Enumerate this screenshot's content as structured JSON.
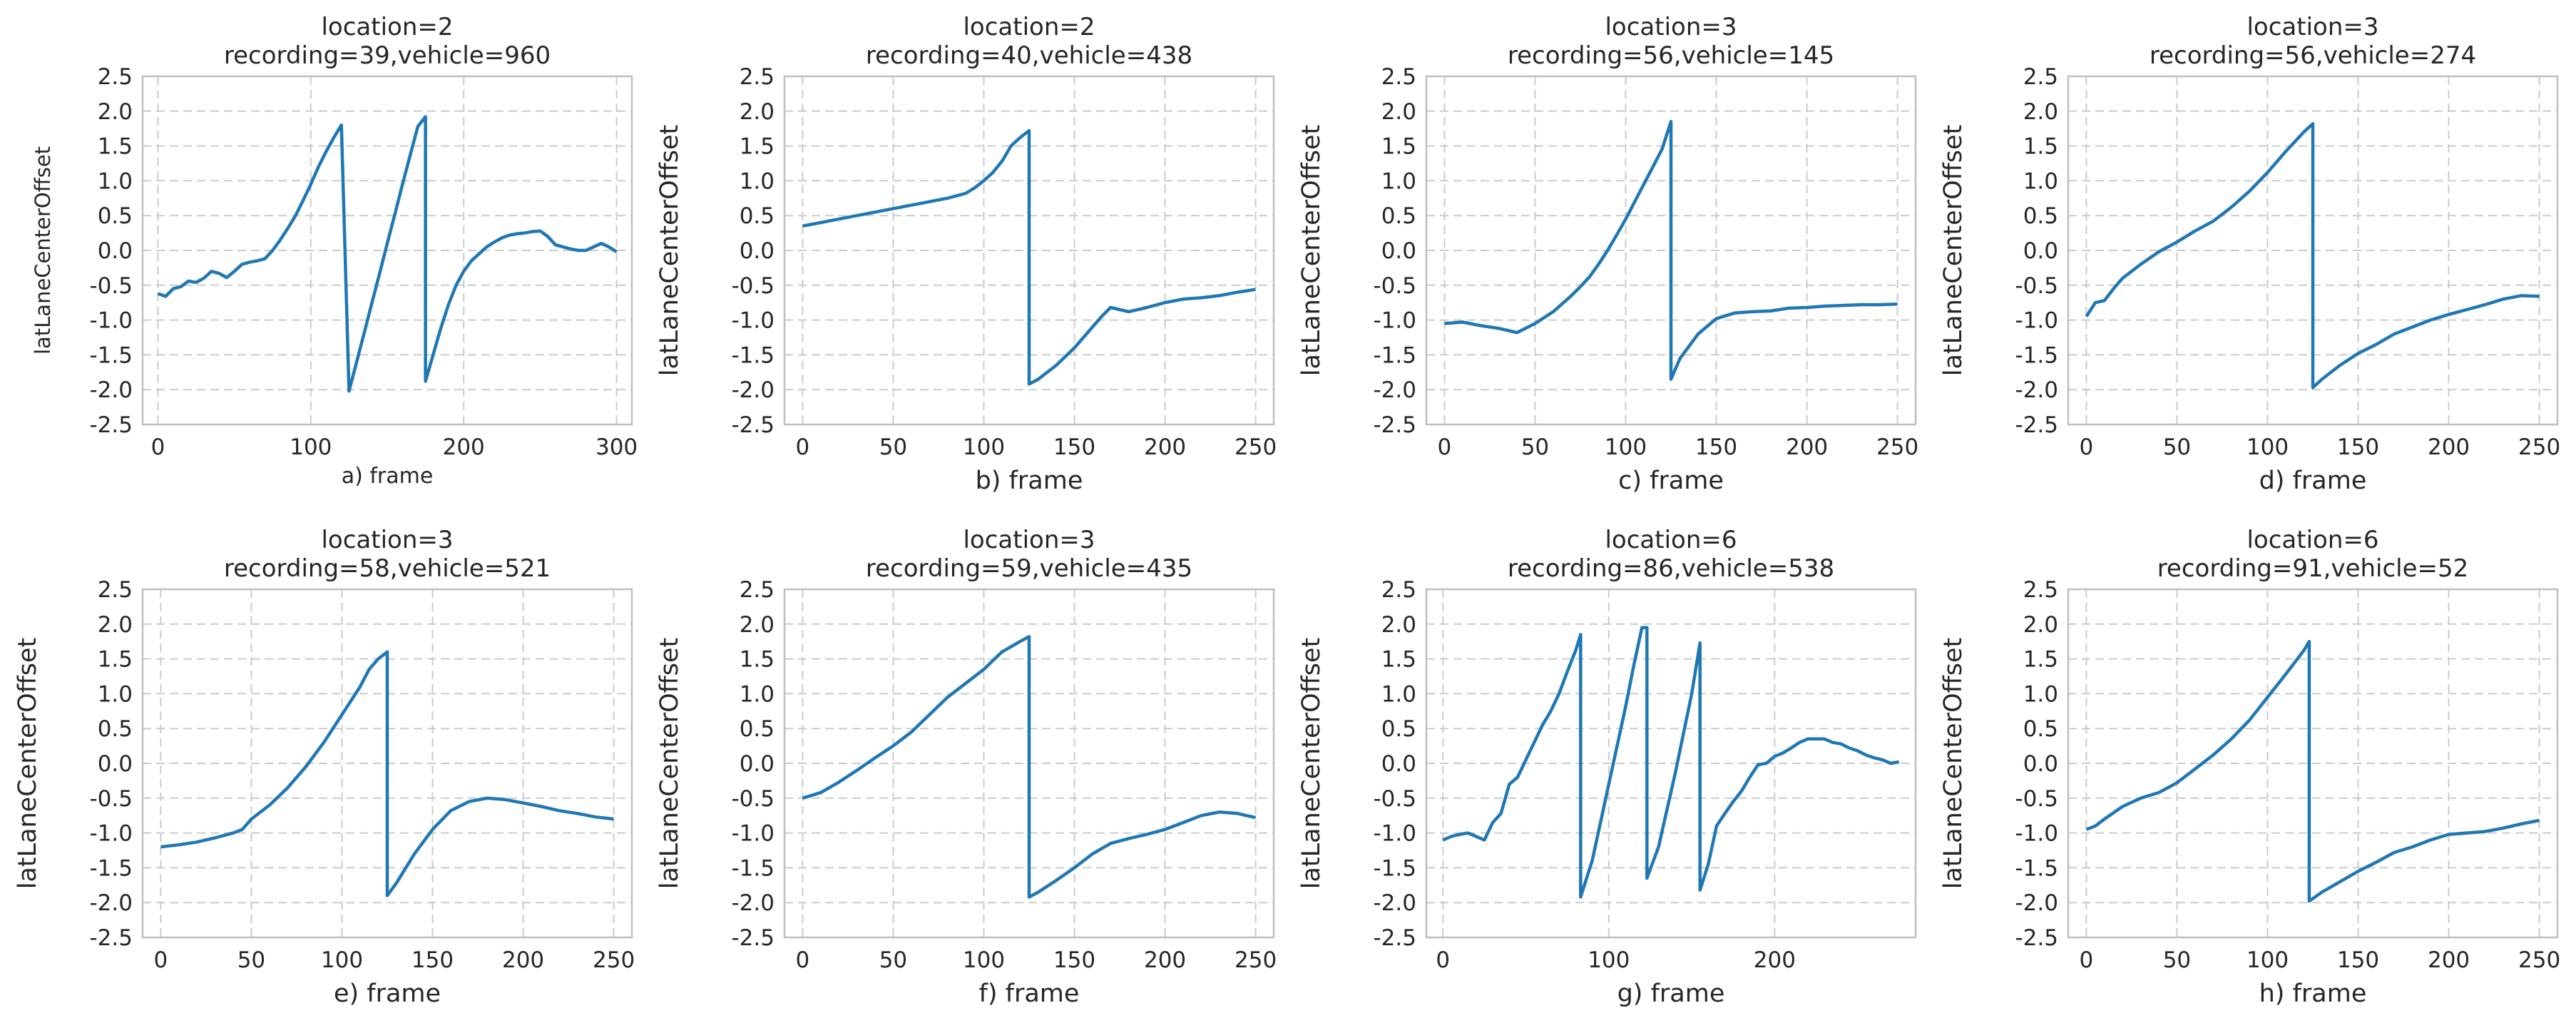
{
  "style": {
    "line_color": "#1f77b4",
    "grid_color": "#cccccc",
    "frame_color": "#bfbfbf",
    "text_color": "#262626"
  },
  "chart_data": [
    {
      "type": "line",
      "title": "location=2",
      "subtitle": "recording=39,vehicle=960",
      "xlabel": "a) frame",
      "ylabel": "latLaneCenterOffset",
      "xlim": [
        -10,
        310
      ],
      "ylim": [
        -2.5,
        2.5
      ],
      "xticks": [
        0,
        100,
        200,
        300
      ],
      "yticks": [
        -2.5,
        -2.0,
        -1.5,
        -1.0,
        -0.5,
        0.0,
        0.5,
        1.0,
        1.5,
        2.0,
        2.5
      ],
      "grid": true,
      "series": [
        {
          "x": [
            0,
            5,
            10,
            15,
            20,
            25,
            30,
            35,
            40,
            45,
            50,
            55,
            60,
            65,
            70,
            75,
            80,
            85,
            90,
            95,
            100,
            105,
            110,
            115,
            120,
            125,
            125,
            130,
            135,
            140,
            145,
            150,
            155,
            160,
            165,
            170,
            175,
            175,
            180,
            185,
            190,
            195,
            200,
            205,
            210,
            215,
            220,
            225,
            230,
            235,
            240,
            245,
            250,
            255,
            260,
            265,
            270,
            275,
            280,
            285,
            290,
            295,
            300
          ],
          "y": [
            -0.62,
            -0.66,
            -0.55,
            -0.52,
            -0.44,
            -0.46,
            -0.4,
            -0.3,
            -0.33,
            -0.39,
            -0.3,
            -0.2,
            -0.17,
            -0.15,
            -0.12,
            0.0,
            0.15,
            0.32,
            0.5,
            0.72,
            0.95,
            1.2,
            1.42,
            1.62,
            1.8,
            -2.02,
            -2.02,
            -1.6,
            -1.18,
            -0.75,
            -0.33,
            0.1,
            0.52,
            0.95,
            1.37,
            1.78,
            1.92,
            -1.88,
            -1.5,
            -1.12,
            -0.78,
            -0.5,
            -0.3,
            -0.15,
            -0.05,
            0.05,
            0.12,
            0.18,
            0.22,
            0.24,
            0.25,
            0.27,
            0.28,
            0.2,
            0.08,
            0.05,
            0.02,
            0.0,
            0.0,
            0.05,
            0.1,
            0.05,
            -0.02
          ]
        }
      ]
    },
    {
      "type": "line",
      "title": "location=2",
      "subtitle": "recording=40,vehicle=438",
      "xlabel": "b) frame",
      "ylabel": "latLaneCenterOffset",
      "xlim": [
        -10,
        260
      ],
      "ylim": [
        -2.5,
        2.5
      ],
      "xticks": [
        0,
        50,
        100,
        150,
        200,
        250
      ],
      "yticks": [
        -2.5,
        -2.0,
        -1.5,
        -1.0,
        -0.5,
        0.0,
        0.5,
        1.0,
        1.5,
        2.0,
        2.5
      ],
      "grid": true,
      "series": [
        {
          "x": [
            0,
            10,
            20,
            30,
            40,
            50,
            60,
            70,
            80,
            90,
            95,
            100,
            105,
            110,
            115,
            120,
            125,
            125,
            130,
            140,
            150,
            160,
            165,
            170,
            175,
            180,
            190,
            200,
            210,
            220,
            230,
            240,
            250
          ],
          "y": [
            0.35,
            0.4,
            0.45,
            0.5,
            0.55,
            0.6,
            0.65,
            0.7,
            0.75,
            0.82,
            0.9,
            1.0,
            1.12,
            1.28,
            1.5,
            1.62,
            1.72,
            -1.92,
            -1.85,
            -1.65,
            -1.4,
            -1.1,
            -0.95,
            -0.82,
            -0.85,
            -0.88,
            -0.82,
            -0.75,
            -0.7,
            -0.68,
            -0.65,
            -0.6,
            -0.56
          ]
        }
      ]
    },
    {
      "type": "line",
      "title": "location=3",
      "subtitle": "recording=56,vehicle=145",
      "xlabel": "c) frame",
      "ylabel": "latLaneCenterOffset",
      "xlim": [
        -10,
        260
      ],
      "ylim": [
        -2.5,
        2.5
      ],
      "xticks": [
        0,
        50,
        100,
        150,
        200,
        250
      ],
      "yticks": [
        -2.5,
        -2.0,
        -1.5,
        -1.0,
        -0.5,
        0.0,
        0.5,
        1.0,
        1.5,
        2.0,
        2.5
      ],
      "grid": true,
      "series": [
        {
          "x": [
            0,
            10,
            20,
            30,
            40,
            50,
            60,
            70,
            75,
            80,
            85,
            90,
            95,
            100,
            105,
            110,
            115,
            120,
            125,
            125,
            130,
            140,
            150,
            160,
            170,
            180,
            190,
            200,
            210,
            220,
            230,
            240,
            250
          ],
          "y": [
            -1.05,
            -1.03,
            -1.08,
            -1.12,
            -1.18,
            -1.05,
            -0.88,
            -0.65,
            -0.52,
            -0.38,
            -0.2,
            0.0,
            0.22,
            0.45,
            0.7,
            0.95,
            1.2,
            1.45,
            1.85,
            -1.85,
            -1.55,
            -1.2,
            -0.98,
            -0.9,
            -0.88,
            -0.87,
            -0.83,
            -0.82,
            -0.8,
            -0.79,
            -0.78,
            -0.78,
            -0.77
          ]
        }
      ]
    },
    {
      "type": "line",
      "title": "location=3",
      "subtitle": "recording=56,vehicle=274",
      "xlabel": "d) frame",
      "ylabel": "latLaneCenterOffset",
      "xlim": [
        -10,
        260
      ],
      "ylim": [
        -2.5,
        2.5
      ],
      "xticks": [
        0,
        50,
        100,
        150,
        200,
        250
      ],
      "yticks": [
        -2.5,
        -2.0,
        -1.5,
        -1.0,
        -0.5,
        0.0,
        0.5,
        1.0,
        1.5,
        2.0,
        2.5
      ],
      "grid": true,
      "series": [
        {
          "x": [
            0,
            5,
            10,
            15,
            20,
            30,
            40,
            50,
            60,
            70,
            80,
            90,
            100,
            110,
            120,
            125,
            125,
            130,
            140,
            150,
            160,
            170,
            180,
            190,
            200,
            210,
            220,
            230,
            240,
            250
          ],
          "y": [
            -0.95,
            -0.75,
            -0.72,
            -0.55,
            -0.4,
            -0.2,
            -0.02,
            0.12,
            0.28,
            0.42,
            0.62,
            0.85,
            1.12,
            1.42,
            1.7,
            1.82,
            -1.97,
            -1.85,
            -1.65,
            -1.48,
            -1.35,
            -1.2,
            -1.1,
            -1.0,
            -0.92,
            -0.85,
            -0.78,
            -0.7,
            -0.65,
            -0.66
          ]
        }
      ]
    },
    {
      "type": "line",
      "title": "location=3",
      "subtitle": "recording=58,vehicle=521",
      "xlabel": "e) frame",
      "ylabel": "latLaneCenterOffset",
      "xlim": [
        -10,
        260
      ],
      "ylim": [
        -2.5,
        2.5
      ],
      "xticks": [
        0,
        50,
        100,
        150,
        200,
        250
      ],
      "yticks": [
        -2.5,
        -2.0,
        -1.5,
        -1.0,
        -0.5,
        0.0,
        0.5,
        1.0,
        1.5,
        2.0,
        2.5
      ],
      "grid": true,
      "series": [
        {
          "x": [
            0,
            10,
            20,
            30,
            40,
            45,
            50,
            60,
            70,
            80,
            90,
            100,
            110,
            115,
            120,
            125,
            125,
            130,
            140,
            150,
            160,
            170,
            180,
            190,
            200,
            210,
            220,
            230,
            240,
            250
          ],
          "y": [
            -1.2,
            -1.17,
            -1.13,
            -1.07,
            -1.0,
            -0.95,
            -0.8,
            -0.6,
            -0.35,
            -0.05,
            0.3,
            0.7,
            1.1,
            1.35,
            1.5,
            1.6,
            -1.9,
            -1.72,
            -1.3,
            -0.95,
            -0.68,
            -0.55,
            -0.5,
            -0.52,
            -0.57,
            -0.62,
            -0.68,
            -0.72,
            -0.77,
            -0.8
          ]
        }
      ]
    },
    {
      "type": "line",
      "title": "location=3",
      "subtitle": "recording=59,vehicle=435",
      "xlabel": "f) frame",
      "ylabel": "latLaneCenterOffset",
      "xlim": [
        -10,
        260
      ],
      "ylim": [
        -2.5,
        2.5
      ],
      "xticks": [
        0,
        50,
        100,
        150,
        200,
        250
      ],
      "yticks": [
        -2.5,
        -2.0,
        -1.5,
        -1.0,
        -0.5,
        0.0,
        0.5,
        1.0,
        1.5,
        2.0,
        2.5
      ],
      "grid": true,
      "series": [
        {
          "x": [
            0,
            10,
            20,
            30,
            40,
            50,
            60,
            70,
            80,
            90,
            100,
            110,
            120,
            125,
            125,
            130,
            140,
            150,
            160,
            170,
            180,
            190,
            200,
            210,
            220,
            230,
            240,
            250
          ],
          "y": [
            -0.5,
            -0.42,
            -0.27,
            -0.1,
            0.08,
            0.25,
            0.45,
            0.7,
            0.95,
            1.15,
            1.35,
            1.6,
            1.75,
            1.82,
            -1.92,
            -1.85,
            -1.68,
            -1.5,
            -1.3,
            -1.15,
            -1.08,
            -1.02,
            -0.95,
            -0.85,
            -0.75,
            -0.7,
            -0.72,
            -0.78
          ]
        }
      ]
    },
    {
      "type": "line",
      "title": "location=6",
      "subtitle": "recording=86,vehicle=538",
      "xlabel": "g) frame",
      "ylabel": "latLaneCenterOffset",
      "xlim": [
        -10,
        285
      ],
      "ylim": [
        -2.5,
        2.5
      ],
      "xticks": [
        0,
        100,
        200
      ],
      "yticks": [
        -2.5,
        -2.0,
        -1.5,
        -1.0,
        -0.5,
        0.0,
        0.5,
        1.0,
        1.5,
        2.0,
        2.5
      ],
      "grid": true,
      "series": [
        {
          "x": [
            0,
            5,
            10,
            15,
            20,
            25,
            30,
            35,
            40,
            45,
            50,
            55,
            60,
            65,
            70,
            75,
            80,
            83,
            83,
            90,
            100,
            110,
            115,
            120,
            123,
            123,
            130,
            140,
            150,
            155,
            155,
            160,
            165,
            170,
            175,
            180,
            185,
            190,
            195,
            200,
            205,
            210,
            215,
            220,
            225,
            230,
            235,
            240,
            245,
            250,
            255,
            260,
            265,
            270,
            275
          ],
          "y": [
            -1.1,
            -1.05,
            -1.02,
            -1.0,
            -1.05,
            -1.1,
            -0.85,
            -0.72,
            -0.3,
            -0.2,
            0.05,
            0.3,
            0.55,
            0.75,
            1.0,
            1.32,
            1.62,
            1.85,
            -1.92,
            -1.4,
            -0.3,
            0.8,
            1.4,
            1.95,
            1.95,
            -1.65,
            -1.2,
            -0.15,
            1.0,
            1.73,
            -1.82,
            -1.45,
            -0.9,
            -0.72,
            -0.55,
            -0.4,
            -0.2,
            -0.02,
            0.0,
            0.1,
            0.15,
            0.22,
            0.3,
            0.35,
            0.35,
            0.35,
            0.3,
            0.28,
            0.22,
            0.18,
            0.12,
            0.08,
            0.05,
            0.0,
            0.02
          ]
        }
      ]
    },
    {
      "type": "line",
      "title": "location=6",
      "subtitle": "recording=91,vehicle=52",
      "xlabel": "h) frame",
      "ylabel": "latLaneCenterOffset",
      "xlim": [
        -10,
        260
      ],
      "ylim": [
        -2.5,
        2.5
      ],
      "xticks": [
        0,
        50,
        100,
        150,
        200,
        250
      ],
      "yticks": [
        -2.5,
        -2.0,
        -1.5,
        -1.0,
        -0.5,
        0.0,
        0.5,
        1.0,
        1.5,
        2.0,
        2.5
      ],
      "grid": true,
      "series": [
        {
          "x": [
            0,
            5,
            10,
            20,
            30,
            40,
            50,
            60,
            70,
            80,
            90,
            100,
            110,
            120,
            123,
            123,
            130,
            140,
            150,
            160,
            170,
            180,
            190,
            200,
            210,
            220,
            230,
            240,
            250
          ],
          "y": [
            -0.95,
            -0.9,
            -0.8,
            -0.62,
            -0.5,
            -0.42,
            -0.28,
            -0.08,
            0.12,
            0.35,
            0.62,
            0.95,
            1.28,
            1.62,
            1.75,
            -1.98,
            -1.85,
            -1.7,
            -1.55,
            -1.42,
            -1.28,
            -1.2,
            -1.1,
            -1.02,
            -1.0,
            -0.98,
            -0.93,
            -0.87,
            -0.82
          ]
        }
      ]
    }
  ]
}
